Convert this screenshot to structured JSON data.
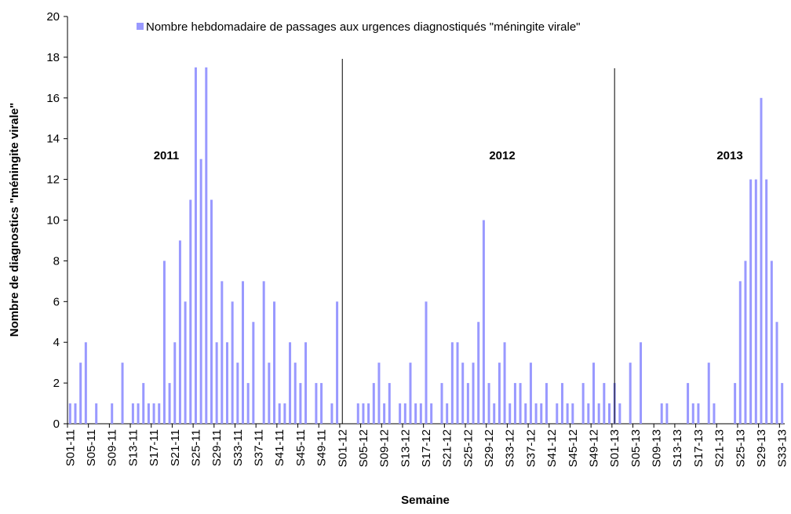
{
  "chart_data": {
    "type": "bar",
    "legend_label": "Nombre hebdomadaire de passages aux urgences diagnostiqués \"méningite virale\"",
    "color": "#9999ff",
    "xlabel": "Semaine",
    "ylabel": "Nombre de diagnostics \"méningite virale\"",
    "annotations": [
      "2011",
      "2012",
      "2013"
    ],
    "ylim": [
      0,
      20
    ],
    "yticks": [
      0,
      2,
      4,
      6,
      8,
      10,
      12,
      14,
      16,
      18,
      20
    ],
    "categories": [
      "S01-11",
      null,
      null,
      null,
      "S05-11",
      null,
      null,
      null,
      "S09-11",
      null,
      null,
      null,
      "S13-11",
      null,
      null,
      null,
      "S17-11",
      null,
      null,
      null,
      "S21-11",
      null,
      null,
      null,
      "S25-11",
      null,
      null,
      null,
      "S29-11",
      null,
      null,
      null,
      "S33-11",
      null,
      null,
      null,
      "S37-11",
      null,
      null,
      null,
      "S41-11",
      null,
      null,
      null,
      "S45-11",
      null,
      null,
      null,
      "S49-11",
      null,
      null,
      null,
      "S01-12",
      null,
      null,
      null,
      "S05-12",
      null,
      null,
      null,
      "S09-12",
      null,
      null,
      null,
      "S13-12",
      null,
      null,
      null,
      "S17-12",
      null,
      null,
      null,
      "S21-12",
      null,
      null,
      null,
      "S25-12",
      null,
      null,
      null,
      "S29-12",
      null,
      null,
      null,
      "S33-12",
      null,
      null,
      null,
      "S37-12",
      null,
      null,
      null,
      "S41-12",
      null,
      null,
      null,
      "S45-12",
      null,
      null,
      null,
      "S49-12",
      null,
      null,
      null,
      "S01-13",
      null,
      null,
      null,
      "S05-13",
      null,
      null,
      null,
      "S09-13",
      null,
      null,
      null,
      "S13-13",
      null,
      null,
      null,
      "S17-13",
      null,
      null,
      null,
      "S21-13",
      null,
      null,
      null,
      "S25-13",
      null,
      null,
      null,
      "S29-13",
      null,
      null,
      null,
      "S33-13"
    ],
    "values": [
      1,
      1,
      3,
      4,
      0,
      1,
      0,
      0,
      1,
      0,
      3,
      0,
      1,
      1,
      2,
      1,
      1,
      1,
      8,
      2,
      4,
      9,
      6,
      11,
      17.5,
      13,
      17.5,
      11,
      4,
      7,
      4,
      6,
      3,
      7,
      2,
      5,
      0,
      7,
      3,
      6,
      1,
      1,
      4,
      3,
      2,
      4,
      0,
      2,
      2,
      0,
      1,
      6,
      0,
      0,
      0,
      1,
      1,
      1,
      2,
      3,
      1,
      2,
      0,
      1,
      1,
      3,
      1,
      1,
      6,
      1,
      0,
      2,
      1,
      4,
      4,
      3,
      2,
      3,
      5,
      10,
      2,
      1,
      3,
      4,
      1,
      2,
      2,
      1,
      3,
      1,
      1,
      2,
      0,
      1,
      2,
      1,
      1,
      0,
      2,
      1,
      3,
      1,
      2,
      1,
      2,
      1,
      0,
      3,
      0,
      4,
      0,
      0,
      0,
      1,
      1,
      0,
      0,
      0,
      2,
      1,
      1,
      0,
      3,
      1,
      0,
      0,
      0,
      2,
      7,
      8,
      12,
      12,
      16,
      12,
      8,
      5,
      2
    ]
  }
}
